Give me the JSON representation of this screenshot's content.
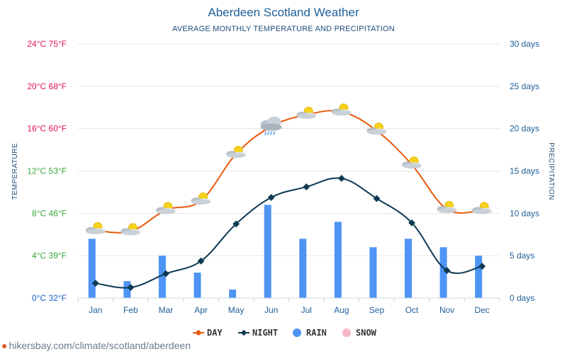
{
  "title": "Aberdeen Scotland Weather",
  "subtitle": "AVERAGE MONTHLY TEMPERATURE AND PRECIPITATION",
  "source": "hikersbay.com/climate/scotland/aberdeen",
  "colors": {
    "day": "#e8590c",
    "night": "#0e3a53",
    "rain": "#4d94f5",
    "snow": "#f7b8c6",
    "left_tick_red": "#e0115f",
    "left_tick_green": "#3aa63a",
    "left_tick_blue": "#1a5fbf",
    "right_tick": "#1f5f9a"
  },
  "chart_data": {
    "type": "line",
    "categories": [
      "Jan",
      "Feb",
      "Mar",
      "Apr",
      "May",
      "Jun",
      "Jul",
      "Aug",
      "Sep",
      "Oct",
      "Nov",
      "Dec"
    ],
    "series": [
      {
        "name": "DAY",
        "type": "line",
        "axis": "left",
        "values": [
          6.4,
          6.3,
          8.3,
          9.2,
          13.6,
          16.2,
          17.3,
          17.6,
          15.8,
          12.6,
          8.4,
          8.3
        ]
      },
      {
        "name": "NIGHT",
        "type": "line",
        "axis": "left",
        "values": [
          1.4,
          1.0,
          2.3,
          3.5,
          7.0,
          9.5,
          10.5,
          11.3,
          9.4,
          7.1,
          2.6,
          3.0
        ]
      },
      {
        "name": "RAIN",
        "type": "bar",
        "axis": "right",
        "values": [
          7,
          2,
          5,
          3,
          1,
          11,
          7,
          9,
          6,
          7,
          6,
          5
        ]
      },
      {
        "name": "SNOW",
        "type": "bar",
        "axis": "right",
        "values": [
          0,
          0,
          0,
          0,
          0,
          0,
          0,
          0,
          0,
          0,
          0,
          0
        ]
      }
    ],
    "left_axis": {
      "label": "TEMPERATURE",
      "ylim": [
        0,
        24
      ],
      "ticks": [
        {
          "value": 0,
          "label": "0°C 32°F"
        },
        {
          "value": 4,
          "label": "4°C 39°F"
        },
        {
          "value": 8,
          "label": "8°C 46°F"
        },
        {
          "value": 12,
          "label": "12°C 53°F"
        },
        {
          "value": 16,
          "label": "16°C 60°F"
        },
        {
          "value": 20,
          "label": "20°C 68°F"
        },
        {
          "value": 24,
          "label": "24°C 75°F"
        }
      ]
    },
    "right_axis": {
      "label": "PRECIPITATION",
      "ylim": [
        0,
        30
      ],
      "ticks": [
        {
          "value": 0,
          "label": "0 days"
        },
        {
          "value": 5,
          "label": "5 days"
        },
        {
          "value": 10,
          "label": "10 days"
        },
        {
          "value": 15,
          "label": "15 days"
        },
        {
          "value": 20,
          "label": "20 days"
        },
        {
          "value": 25,
          "label": "25 days"
        },
        {
          "value": 30,
          "label": "30 days"
        }
      ]
    },
    "weather_icons": [
      "partly-cloudy-icon",
      "partly-cloudy-icon",
      "partly-cloudy-icon",
      "partly-cloudy-icon",
      "partly-cloudy-icon",
      "rain-cloud-icon",
      "partly-cloudy-icon",
      "partly-cloudy-icon",
      "partly-cloudy-icon",
      "partly-cloudy-icon",
      "partly-cloudy-icon",
      "partly-cloudy-icon"
    ],
    "legend": [
      "DAY",
      "NIGHT",
      "RAIN",
      "SNOW"
    ],
    "legend_position": "bottom-center",
    "grid": true
  }
}
